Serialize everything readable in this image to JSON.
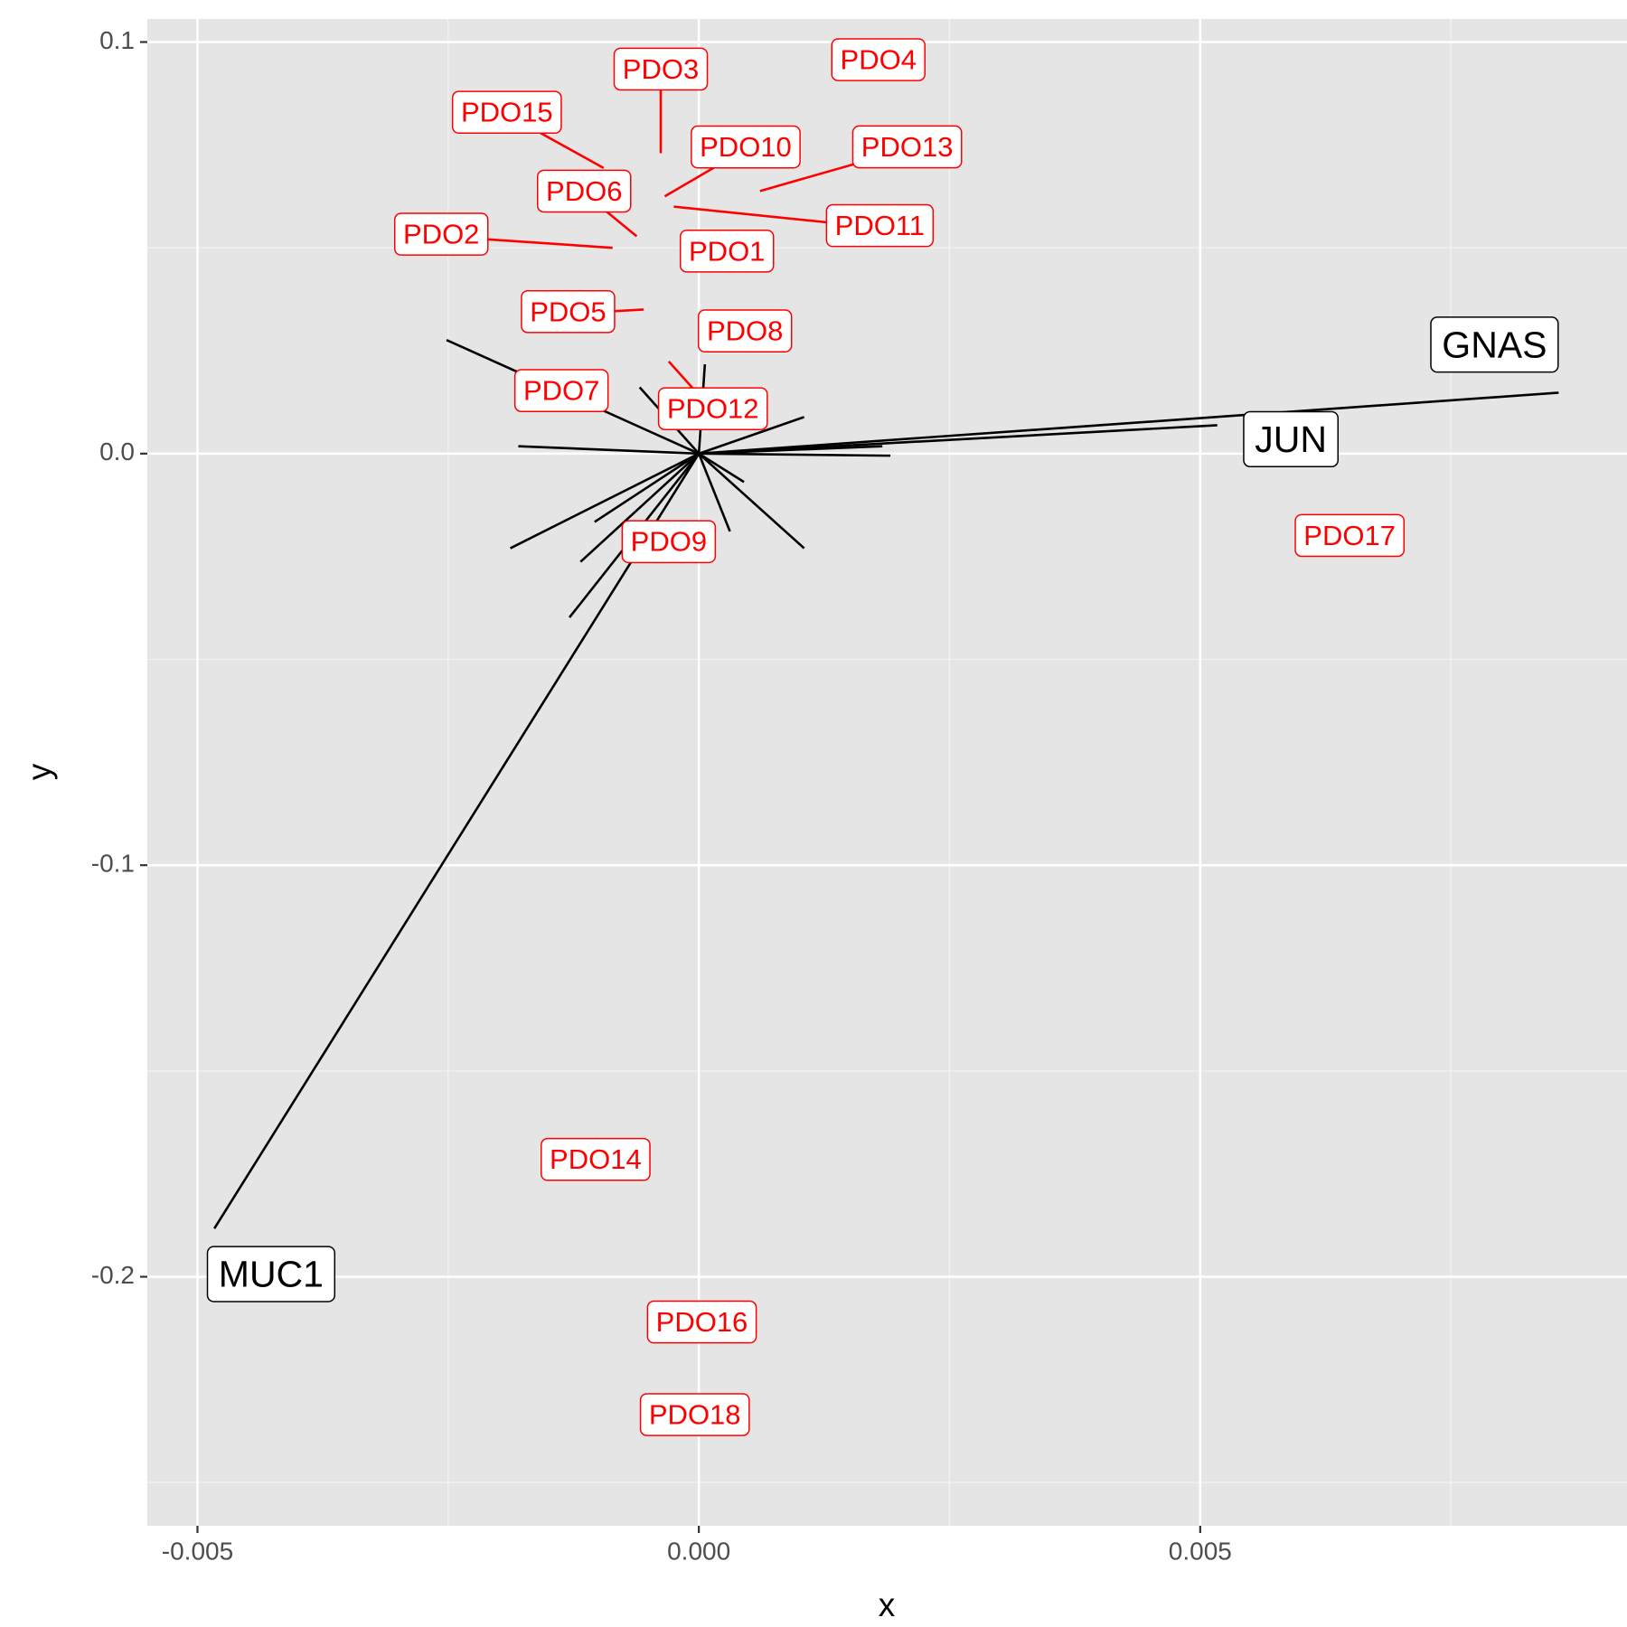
{
  "chart_data": {
    "type": "biplot",
    "xlabel": "x",
    "ylabel": "y",
    "xlim": [
      -0.0055,
      0.009256
    ],
    "ylim": [
      -0.2605,
      0.1056
    ],
    "xticks": [
      {
        "value": -0.005,
        "label": "-0.005"
      },
      {
        "value": 0,
        "label": "0.000"
      },
      {
        "value": 0.005,
        "label": "0.005"
      }
    ],
    "yticks": [
      -0.2,
      -0.1,
      {
        "value": 0,
        "label": "0.0"
      },
      0.1
    ],
    "grid": true,
    "vectors": {
      "color": "#000000",
      "labels": [
        "GNAS",
        "JUN",
        "MUC1",
        null,
        null,
        null,
        null,
        null,
        null,
        null,
        null,
        null,
        null,
        null,
        null,
        null,
        null
      ],
      "x": [
        0.008574,
        0.00517,
        -0.004832,
        -0.002516,
        -0.0018,
        -0.00188,
        -0.00118,
        -0.00129,
        0.00105,
        0.00031,
        0.00191,
        0.00105,
        6e-05,
        -0.00059,
        -0.00104,
        0.00183,
        0.00045
      ],
      "y": [
        0.0148,
        0.0069,
        -0.1883,
        0.0276,
        0.0018,
        -0.023,
        -0.0263,
        -0.0398,
        -0.023,
        -0.0189,
        -0.0005,
        0.0089,
        0.0217,
        0.0161,
        -0.0166,
        0.0018,
        -0.0069
      ]
    },
    "samples": {
      "color": "#ff0000",
      "labels": [
        "PDO1",
        "PDO2",
        "PDO3",
        "PDO4",
        "PDO5",
        "PDO6",
        "PDO7",
        "PDO8",
        "PDO9",
        "PDO10",
        "PDO11",
        "PDO12",
        "PDO13",
        "PDO14",
        "PDO15",
        "PDO16",
        "PDO17",
        "PDO18"
      ],
      "x": [
        0.00028,
        -0.00086,
        -0.00038,
        0.00179,
        -0.00055,
        -0.00062,
        -0.00137,
        0.00046,
        -0.0003,
        -0.00034,
        -0.00025,
        -0.0003,
        0.00061,
        -0.00103,
        -0.00095,
        3e-05,
        0.00649,
        -4e-05
      ],
      "y": [
        0.0487,
        0.05,
        0.073,
        0.0952,
        0.035,
        0.0528,
        0.0148,
        0.0293,
        -0.0219,
        0.0625,
        0.06,
        0.0224,
        0.0638,
        -0.172,
        0.0694,
        -0.2115,
        -0.0204,
        -0.234
      ]
    }
  }
}
